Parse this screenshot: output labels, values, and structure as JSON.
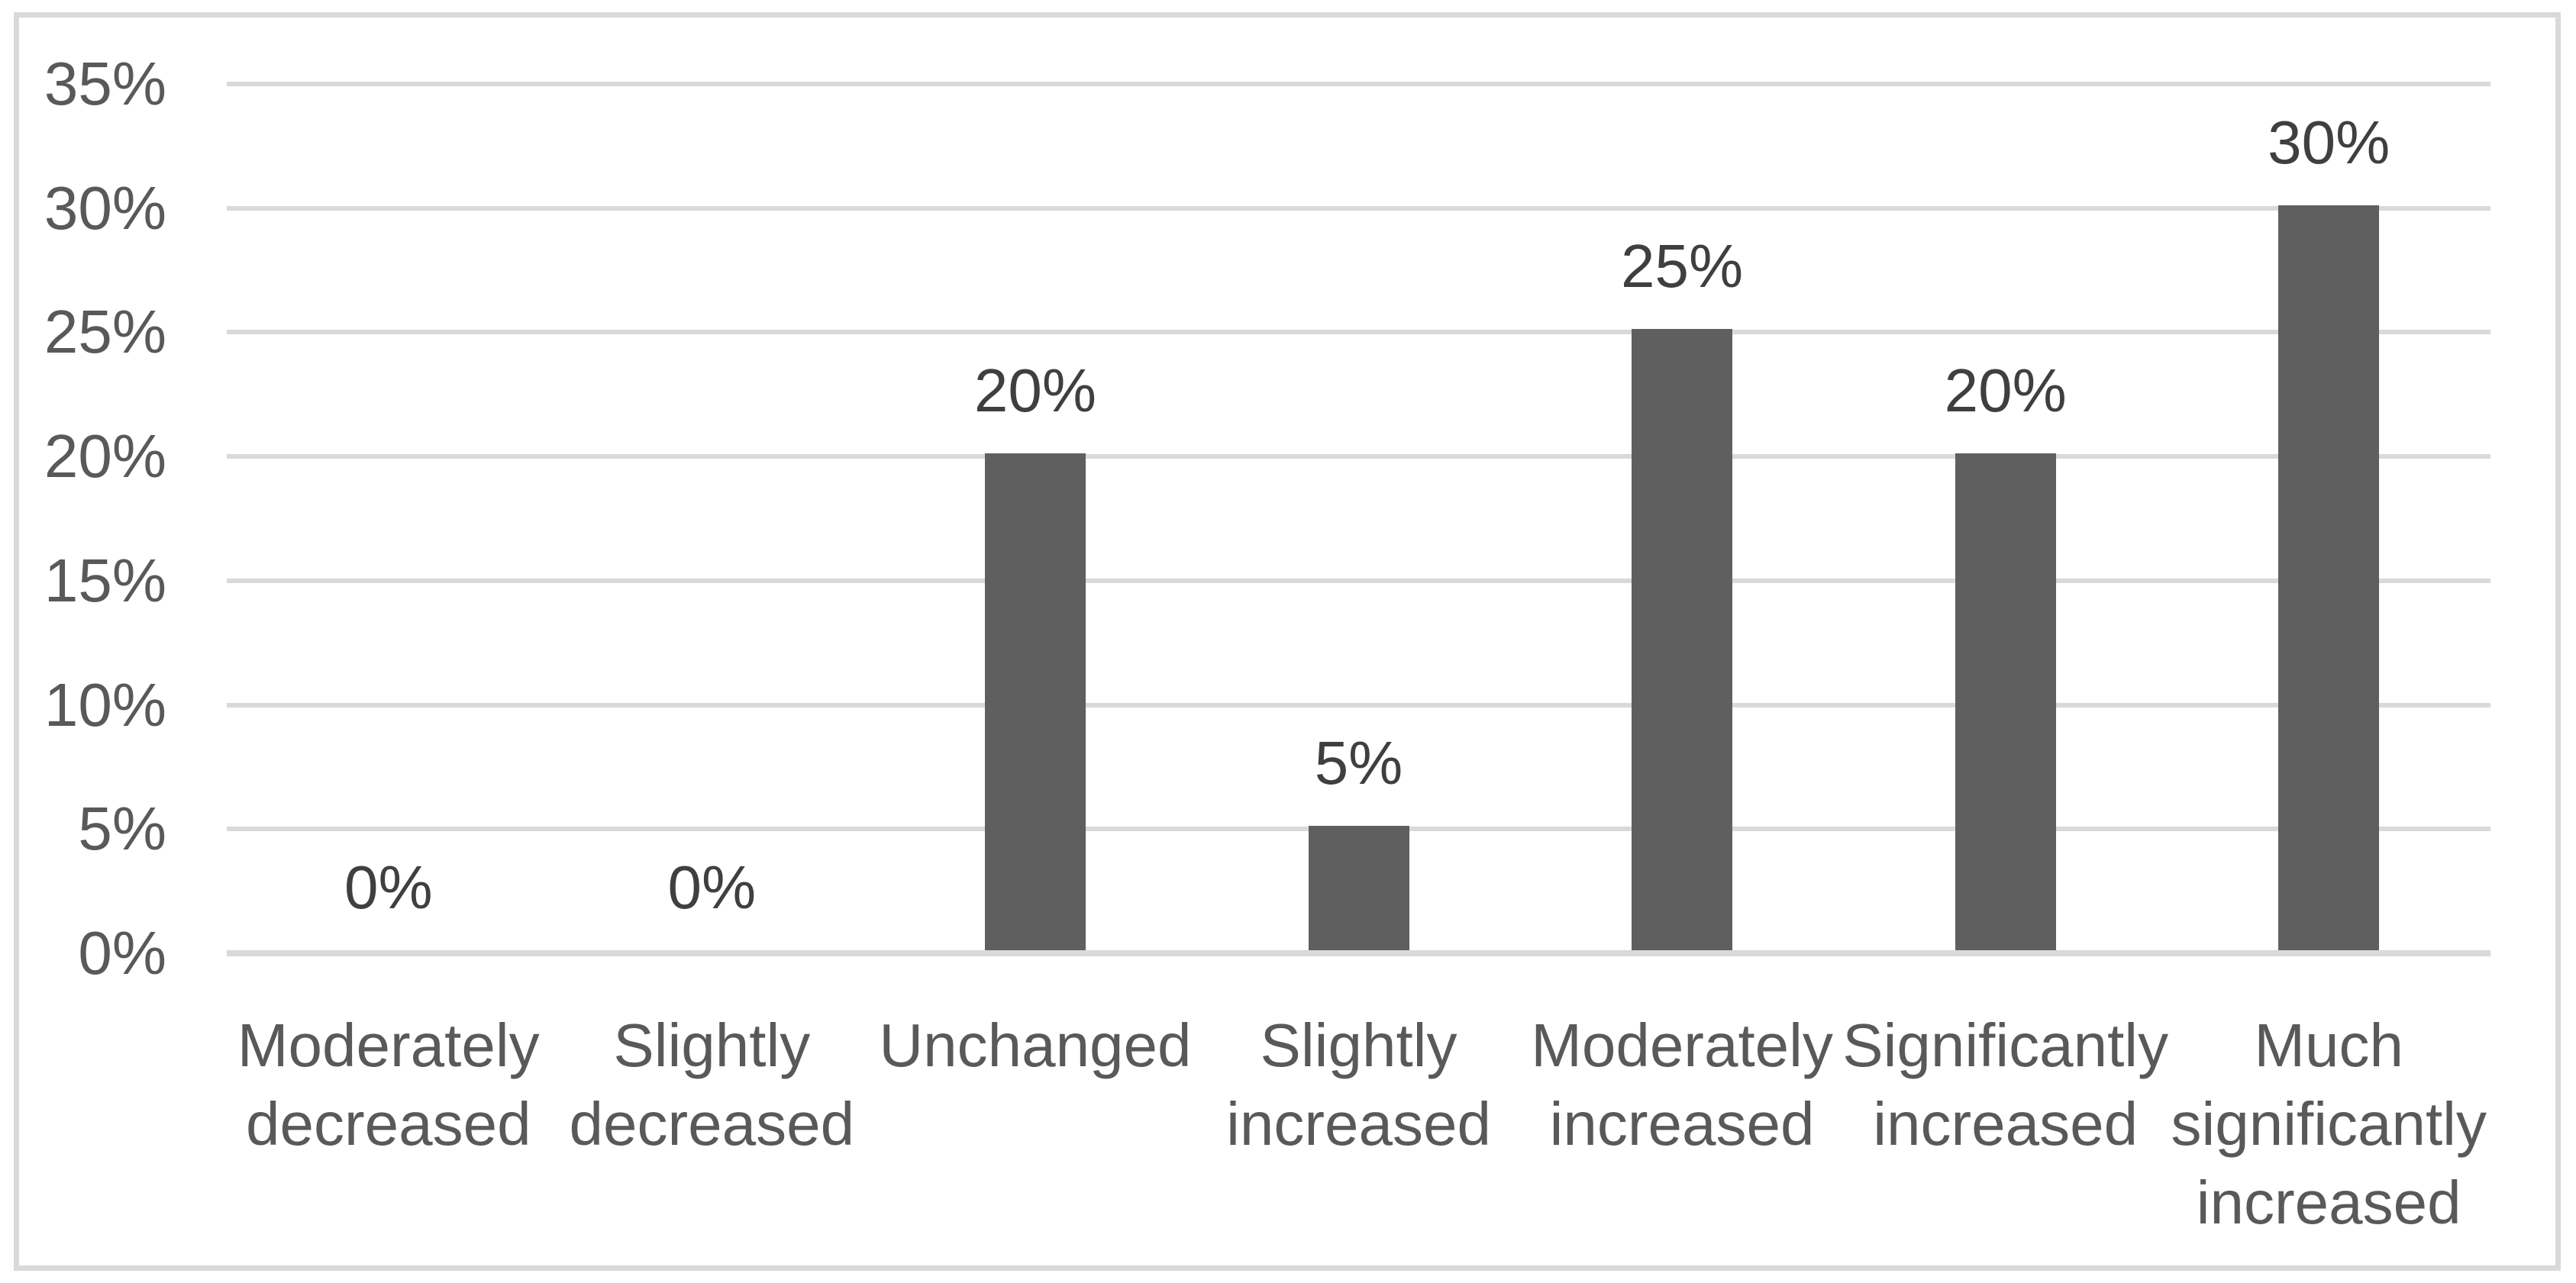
{
  "chart_data": {
    "type": "bar",
    "categories": [
      "Moderately decreased",
      "Slightly decreased",
      "Unchanged",
      "Slightly increased",
      "Moderately increased",
      "Significantly increased",
      "Much significantly increased"
    ],
    "values": [
      0,
      0,
      20,
      5,
      25,
      20,
      30
    ],
    "data_labels": [
      "0%",
      "0%",
      "20%",
      "5%",
      "25%",
      "20%",
      "30%"
    ],
    "y_tick_labels": [
      "0%",
      "5%",
      "10%",
      "15%",
      "20%",
      "25%",
      "30%",
      "35%"
    ],
    "ylim": [
      0,
      35
    ],
    "y_tick_step": 5,
    "grid": true,
    "legend_position": "none",
    "title": "",
    "xlabel": "",
    "ylabel": "",
    "colors": {
      "bar_fill": "#5F5F5F",
      "data_label_text": "#3F3F3F",
      "axis_text": "#595959",
      "gridline": "#D9D9D9",
      "frame_border": "#D9D9D9",
      "background": "#FFFFFF"
    }
  }
}
